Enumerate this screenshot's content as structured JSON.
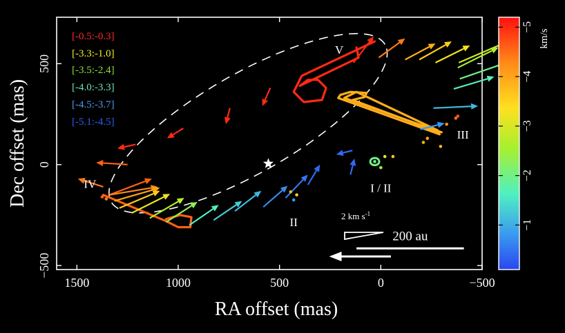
{
  "chart_data": {
    "type": "scatter",
    "title": "",
    "xlabel": "RA offset (mas)",
    "ylabel": "Dec offset (mas)",
    "xlim": [
      1600,
      -500
    ],
    "ylim": [
      -520,
      730
    ],
    "xticks": [
      "1500",
      "1000",
      "500",
      "0",
      "−500"
    ],
    "xtick_values": [
      1500,
      1000,
      500,
      0,
      -500
    ],
    "yticks": [
      "−500",
      "0",
      "500"
    ],
    "ytick_values": [
      -500,
      0,
      500
    ],
    "colorbar": {
      "label": "km/s",
      "range": [
        -5.2,
        -0.1
      ],
      "ticks": [
        "−1",
        "−2",
        "−3",
        "−4",
        "−5"
      ],
      "tick_values": [
        -1,
        -2,
        -3,
        -4,
        -5
      ],
      "colors": [
        "#ff1010",
        "#ff8a18",
        "#ffe020",
        "#a6f030",
        "#50f0c0",
        "#3a9af0",
        "#2a46f0"
      ]
    },
    "legend": [
      {
        "label": "[-0.5:-0.3]",
        "color": "#ff2a2a"
      },
      {
        "label": "[-3.3:-1.0]",
        "color": "#f5ef20"
      },
      {
        "label": "[-3.5:-2.4]",
        "color": "#8ee03a"
      },
      {
        "label": "[-4.0:-3.3]",
        "color": "#6fe5c0"
      },
      {
        "label": "[-4.5:-3.7]",
        "color": "#4a9df0"
      },
      {
        "label": "[-5.1:-4.5]",
        "color": "#2f5ff0"
      }
    ],
    "ellipse": {
      "center": [
        655,
        205
      ],
      "semi_major": 780,
      "semi_minor": 245,
      "pa_deg": 30
    },
    "star": {
      "x": 555,
      "y": 5
    },
    "region_labels": [
      {
        "text": "V",
        "x": 205,
        "y": 570
      },
      {
        "text": "III",
        "x": -405,
        "y": 150
      },
      {
        "text": "IV",
        "x": 1435,
        "y": -95
      },
      {
        "text": "I / II",
        "x": 0,
        "y": -115
      },
      {
        "text": "II",
        "x": 430,
        "y": -285
      }
    ],
    "scale_bar": {
      "label": "200 au",
      "x1": 120,
      "x2": -410,
      "y": -415
    },
    "velocity_key": {
      "label": "2 km s",
      "superscript": "-1",
      "arrow_x1": -50,
      "arrow_x2": 255,
      "arrow_y": -455
    },
    "arrows": [
      {
        "x": 1340,
        "y": -150,
        "dx": 210,
        "dy": 80,
        "vel": -4.6
      },
      {
        "x": 1340,
        "y": -150,
        "dx": 240,
        "dy": 40,
        "vel": -4.3
      },
      {
        "x": 1315,
        "y": -180,
        "dx": 225,
        "dy": 65,
        "vel": -4.0
      },
      {
        "x": 1290,
        "y": -215,
        "dx": 200,
        "dy": 85,
        "vel": -3.6
      },
      {
        "x": 1230,
        "y": -240,
        "dx": 190,
        "dy": 95,
        "vel": -3.2
      },
      {
        "x": 1140,
        "y": -265,
        "dx": 170,
        "dy": 100,
        "vel": -2.7
      },
      {
        "x": 1060,
        "y": -285,
        "dx": 155,
        "dy": 100,
        "vel": -2.3
      },
      {
        "x": 945,
        "y": -300,
        "dx": 145,
        "dy": 100,
        "vel": -1.6
      },
      {
        "x": 825,
        "y": -275,
        "dx": 140,
        "dy": 95,
        "vel": -1.3
      },
      {
        "x": 720,
        "y": -230,
        "dx": 130,
        "dy": 100,
        "vel": -1.1
      },
      {
        "x": 580,
        "y": -210,
        "dx": 120,
        "dy": 105,
        "vel": -0.7
      },
      {
        "x": 470,
        "y": -165,
        "dx": 110,
        "dy": 115,
        "vel": -0.5
      },
      {
        "x": 360,
        "y": -100,
        "dx": 60,
        "dy": 100,
        "vel": -0.4
      },
      {
        "x": 150,
        "y": -50,
        "dx": 20,
        "dy": 80,
        "vel": -0.4
      },
      {
        "x": 140,
        "y": 70,
        "dx": -80,
        "dy": -20,
        "vel": -0.4
      },
      {
        "x": -195,
        "y": 175,
        "dx": 120,
        "dy": 30,
        "vel": -0.8
      },
      {
        "x": -260,
        "y": 280,
        "dx": 220,
        "dy": 10,
        "vel": -1.1
      },
      {
        "x": -360,
        "y": 375,
        "dx": 200,
        "dy": 60,
        "vel": -1.7
      },
      {
        "x": -390,
        "y": 425,
        "dx": 230,
        "dy": 80,
        "vel": -2.0
      },
      {
        "x": -380,
        "y": 480,
        "dx": 200,
        "dy": 100,
        "vel": -2.6
      },
      {
        "x": -385,
        "y": 505,
        "dx": 230,
        "dy": 100,
        "vel": -2.9
      },
      {
        "x": -270,
        "y": 505,
        "dx": 170,
        "dy": 85,
        "vel": -3.3
      },
      {
        "x": -190,
        "y": 520,
        "dx": 160,
        "dy": 90,
        "vel": -3.6
      },
      {
        "x": -120,
        "y": 520,
        "dx": 150,
        "dy": 80,
        "vel": -3.9
      },
      {
        "x": 10,
        "y": 530,
        "dx": 130,
        "dy": 95,
        "vel": -4.4
      },
      {
        "x": 135,
        "y": 505,
        "dx": 100,
        "dy": 130,
        "vel": -5.0
      },
      {
        "x": 545,
        "y": 380,
        "dx": -40,
        "dy": -90,
        "vel": -5.0
      },
      {
        "x": 745,
        "y": 280,
        "dx": -20,
        "dy": -80,
        "vel": -5.0
      },
      {
        "x": 975,
        "y": 180,
        "dx": -80,
        "dy": -50,
        "vel": -5.0
      },
      {
        "x": 1210,
        "y": 100,
        "dx": -90,
        "dy": -20,
        "vel": -5.0
      },
      {
        "x": 1250,
        "y": 0,
        "dx": -155,
        "dy": 10,
        "vel": -4.6
      },
      {
        "x": 1370,
        "y": -110,
        "dx": -125,
        "dy": 40,
        "vel": -4.4
      }
    ],
    "spots": [
      {
        "x": 1375,
        "y": -160,
        "vel": -4.6
      },
      {
        "x": 1355,
        "y": -170,
        "vel": -4.4
      },
      {
        "x": 445,
        "y": -135,
        "vel": -3.8
      },
      {
        "x": 415,
        "y": -150,
        "vel": -3.5
      },
      {
        "x": 430,
        "y": -175,
        "vel": -0.8
      },
      {
        "x": 30,
        "y": 15,
        "vel": -2.0
      },
      {
        "x": -20,
        "y": 40,
        "vel": -3.2
      },
      {
        "x": -60,
        "y": 40,
        "vel": -3.6
      },
      {
        "x": 0,
        "y": -15,
        "vel": -2.4
      },
      {
        "x": -210,
        "y": 110,
        "vel": -3.9
      },
      {
        "x": -230,
        "y": 130,
        "vel": -4.0
      },
      {
        "x": -295,
        "y": 90,
        "vel": -3.8
      },
      {
        "x": -325,
        "y": 200,
        "vel": -4.2
      },
      {
        "x": -370,
        "y": 230,
        "vel": -4.5
      },
      {
        "x": -380,
        "y": 240,
        "vel": -4.7
      }
    ],
    "loops": [
      {
        "points": [
          [
            1370,
            -150
          ],
          [
            1060,
            -280
          ],
          [
            1000,
            -310
          ],
          [
            940,
            -310
          ],
          [
            935,
            -260
          ],
          [
            990,
            -250
          ],
          [
            1060,
            -270
          ]
        ],
        "vel": -4.6
      },
      {
        "points": [
          [
            30,
            610
          ],
          [
            390,
            440
          ],
          [
            430,
            360
          ],
          [
            380,
            310
          ],
          [
            290,
            320
          ],
          [
            270,
            380
          ],
          [
            310,
            420
          ],
          [
            360,
            420
          ],
          [
            400,
            390
          ],
          [
            110,
            530
          ],
          [
            120,
            580
          ]
        ],
        "vel": -5.0
      },
      {
        "points": [
          [
            -290,
            150
          ],
          [
            210,
            330
          ],
          [
            200,
            345
          ],
          [
            150,
            360
          ],
          [
            70,
            355
          ],
          [
            80,
            335
          ],
          [
            140,
            320
          ],
          [
            -290,
            160
          ]
        ],
        "vel": -3.9
      },
      {
        "points": [
          [
            -300,
            160
          ],
          [
            180,
            330
          ],
          [
            120,
            360
          ],
          [
            -280,
            170
          ]
        ],
        "vel": -3.9
      }
    ],
    "small_loops": [
      {
        "cx": 30,
        "cy": 15,
        "rx": 22,
        "ry": 18,
        "vel": -2.0
      }
    ]
  }
}
